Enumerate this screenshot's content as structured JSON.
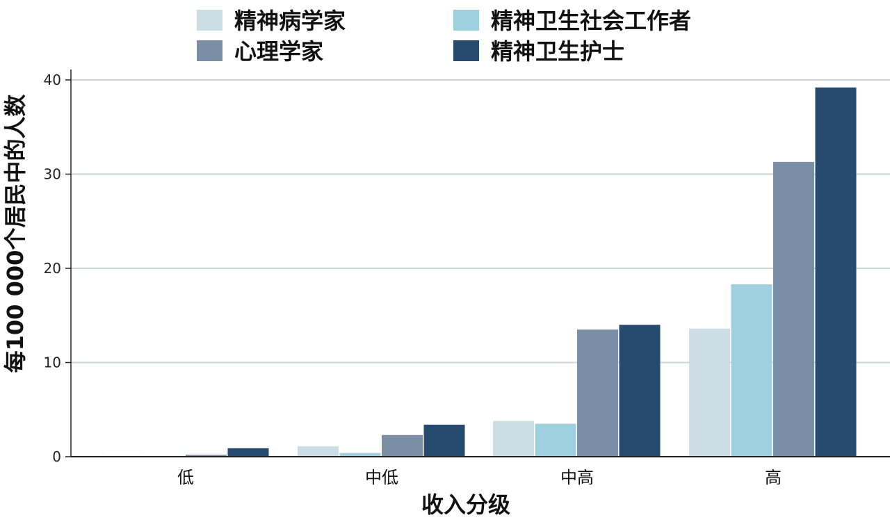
{
  "chart_data": {
    "type": "bar",
    "title": "",
    "xlabel": "收入分级",
    "ylabel": "每100 000个居民中的人数",
    "categories": [
      "低",
      "中低",
      "中高",
      "高"
    ],
    "ylim": [
      0,
      40
    ],
    "yticks": [
      0,
      10,
      20,
      30,
      40
    ],
    "grid": true,
    "legend_position": "top",
    "series": [
      {
        "name": "精神病学家",
        "color": "#ccdde6",
        "values": [
          0.1,
          1.1,
          3.8,
          13.6
        ]
      },
      {
        "name": "精神卫生社会工作者",
        "color": "#9fd0e0",
        "values": [
          0.05,
          0.4,
          3.5,
          18.3
        ]
      },
      {
        "name": "心理学家",
        "color": "#7a8fa6",
        "values": [
          0.2,
          2.3,
          13.5,
          31.3
        ]
      },
      {
        "name": "精神卫生护士",
        "color": "#264b6e",
        "values": [
          0.9,
          3.4,
          14.0,
          39.2
        ]
      }
    ]
  }
}
